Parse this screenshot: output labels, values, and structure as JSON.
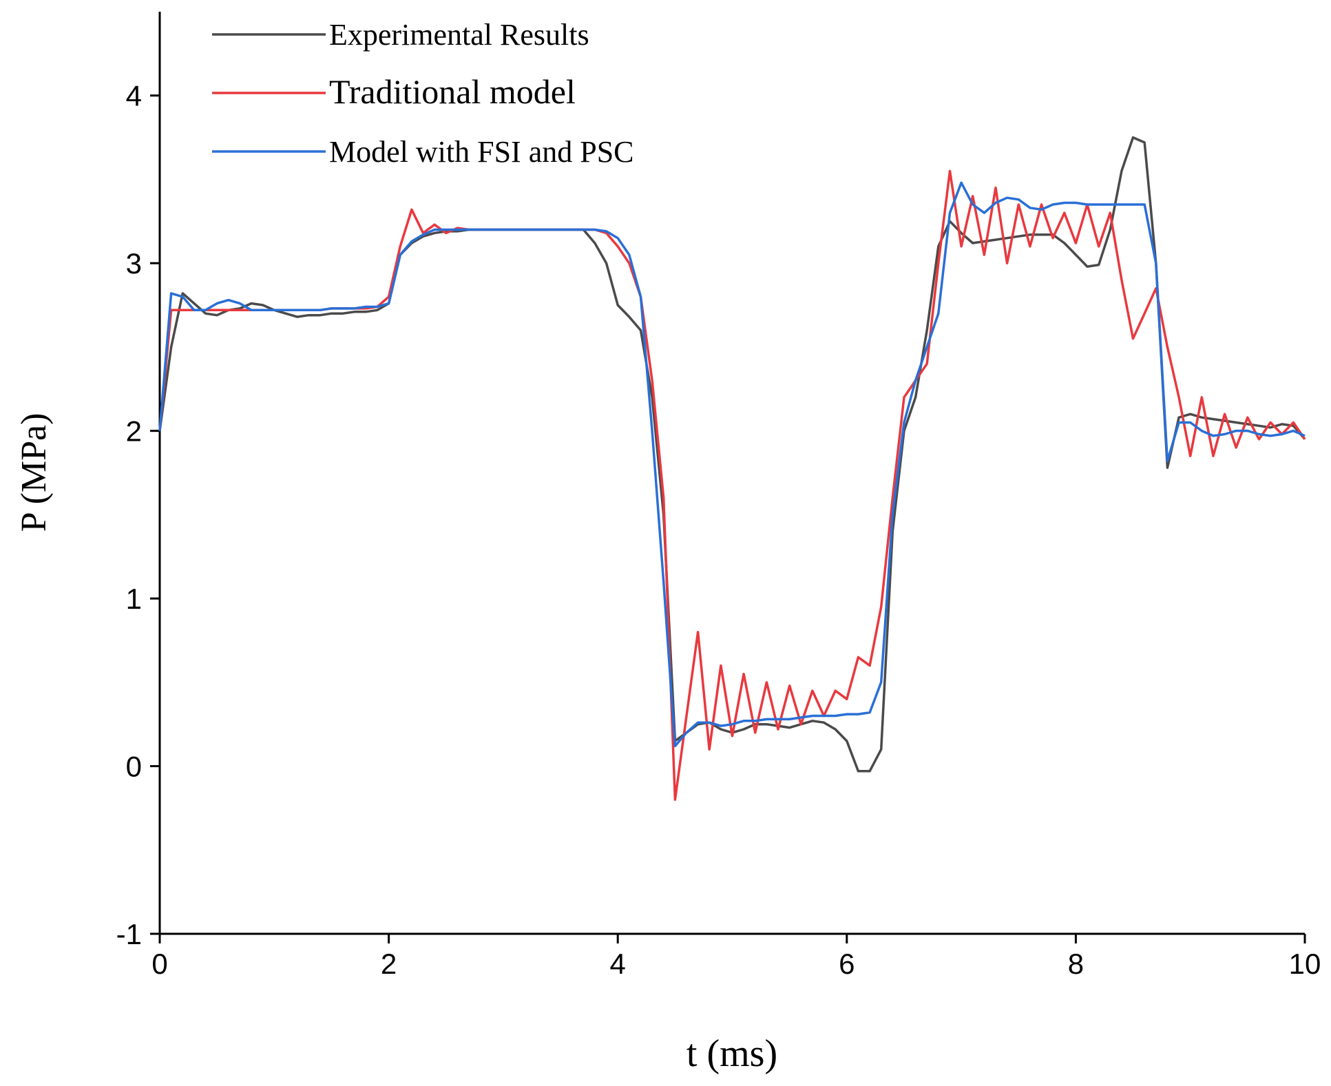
{
  "chart_data": {
    "type": "line",
    "x_label": "t (ms)",
    "y_label": "P (MPa)",
    "xlim": [
      0,
      10
    ],
    "ylim": [
      -1,
      4.5
    ],
    "xticks": [
      0,
      2,
      4,
      6,
      8,
      10
    ],
    "yticks": [
      -1,
      0,
      1,
      2,
      3,
      4
    ],
    "legend": "upper left",
    "x": [
      0,
      0.1,
      0.2,
      0.3,
      0.4,
      0.5,
      0.6,
      0.7,
      0.8,
      0.9,
      1,
      1.1,
      1.2,
      1.3,
      1.4,
      1.5,
      1.6,
      1.7,
      1.8,
      1.9,
      2,
      2.1,
      2.2,
      2.3,
      2.4,
      2.5,
      2.6,
      2.7,
      2.8,
      2.9,
      3,
      3.1,
      3.2,
      3.3,
      3.4,
      3.5,
      3.6,
      3.7,
      3.8,
      3.9,
      4,
      4.1,
      4.2,
      4.3,
      4.4,
      4.5,
      4.6,
      4.7,
      4.8,
      4.9,
      5,
      5.1,
      5.2,
      5.3,
      5.4,
      5.5,
      5.6,
      5.7,
      5.8,
      5.9,
      6,
      6.1,
      6.2,
      6.3,
      6.4,
      6.5,
      6.6,
      6.7,
      6.8,
      6.9,
      7,
      7.1,
      7.2,
      7.3,
      7.4,
      7.5,
      7.6,
      7.7,
      7.8,
      7.9,
      8,
      8.1,
      8.2,
      8.3,
      8.4,
      8.5,
      8.6,
      8.7,
      8.8,
      8.9,
      9,
      9.1,
      9.2,
      9.3,
      9.4,
      9.5,
      9.6,
      9.7,
      9.8,
      9.9,
      10
    ],
    "series": [
      {
        "name": "Experimental Results",
        "color": "#4a4a4a",
        "values": [
          2.0,
          2.5,
          2.82,
          2.76,
          2.7,
          2.69,
          2.72,
          2.73,
          2.76,
          2.75,
          2.72,
          2.7,
          2.68,
          2.69,
          2.69,
          2.7,
          2.7,
          2.71,
          2.71,
          2.72,
          2.76,
          3.05,
          3.12,
          3.16,
          3.18,
          3.19,
          3.19,
          3.2,
          3.2,
          3.2,
          3.2,
          3.2,
          3.2,
          3.2,
          3.2,
          3.2,
          3.2,
          3.2,
          3.12,
          3.0,
          2.75,
          2.68,
          2.6,
          2.2,
          1.5,
          0.15,
          0.2,
          0.25,
          0.26,
          0.22,
          0.2,
          0.22,
          0.25,
          0.25,
          0.24,
          0.23,
          0.25,
          0.27,
          0.26,
          0.22,
          0.15,
          -0.03,
          -0.03,
          0.1,
          1.4,
          2.0,
          2.2,
          2.6,
          3.1,
          3.25,
          3.18,
          3.12,
          3.13,
          3.14,
          3.15,
          3.16,
          3.17,
          3.17,
          3.17,
          3.12,
          3.05,
          2.98,
          2.99,
          3.2,
          3.55,
          3.75,
          3.72,
          3.0,
          1.78,
          2.08,
          2.1,
          2.08,
          2.07,
          2.06,
          2.05,
          2.04,
          2.03,
          2.02,
          2.04,
          2.03,
          1.95
        ]
      },
      {
        "name": "Traditional model",
        "color": "#e8393f",
        "values": [
          2.0,
          2.72,
          2.72,
          2.72,
          2.72,
          2.72,
          2.72,
          2.72,
          2.72,
          2.72,
          2.72,
          2.72,
          2.72,
          2.72,
          2.72,
          2.73,
          2.73,
          2.73,
          2.73,
          2.74,
          2.8,
          3.1,
          3.32,
          3.18,
          3.23,
          3.18,
          3.21,
          3.2,
          3.2,
          3.2,
          3.2,
          3.2,
          3.2,
          3.2,
          3.2,
          3.2,
          3.2,
          3.2,
          3.2,
          3.18,
          3.1,
          3.0,
          2.8,
          2.3,
          1.6,
          -0.2,
          0.3,
          0.8,
          0.1,
          0.6,
          0.18,
          0.55,
          0.2,
          0.5,
          0.22,
          0.48,
          0.25,
          0.45,
          0.3,
          0.45,
          0.4,
          0.65,
          0.6,
          0.95,
          1.6,
          2.2,
          2.3,
          2.4,
          3.0,
          3.55,
          3.1,
          3.4,
          3.05,
          3.45,
          3.0,
          3.35,
          3.1,
          3.35,
          3.15,
          3.3,
          3.12,
          3.35,
          3.1,
          3.3,
          2.9,
          2.55,
          2.7,
          2.85,
          2.5,
          2.2,
          1.85,
          2.2,
          1.85,
          2.1,
          1.9,
          2.08,
          1.95,
          2.05,
          1.98,
          2.05,
          1.95
        ]
      },
      {
        "name": "Model with FSI and PSC",
        "color": "#2a6fd6",
        "values": [
          2.0,
          2.82,
          2.8,
          2.72,
          2.72,
          2.76,
          2.78,
          2.76,
          2.72,
          2.72,
          2.72,
          2.72,
          2.72,
          2.72,
          2.72,
          2.73,
          2.73,
          2.73,
          2.74,
          2.74,
          2.76,
          3.05,
          3.13,
          3.17,
          3.2,
          3.2,
          3.2,
          3.2,
          3.2,
          3.2,
          3.2,
          3.2,
          3.2,
          3.2,
          3.2,
          3.2,
          3.2,
          3.2,
          3.2,
          3.19,
          3.15,
          3.05,
          2.8,
          2.0,
          1.1,
          0.12,
          0.2,
          0.26,
          0.26,
          0.24,
          0.25,
          0.27,
          0.27,
          0.28,
          0.28,
          0.28,
          0.29,
          0.3,
          0.3,
          0.3,
          0.31,
          0.31,
          0.32,
          0.5,
          1.5,
          2.05,
          2.3,
          2.5,
          2.7,
          3.3,
          3.48,
          3.35,
          3.3,
          3.36,
          3.39,
          3.38,
          3.33,
          3.32,
          3.35,
          3.36,
          3.36,
          3.35,
          3.35,
          3.35,
          3.35,
          3.35,
          3.35,
          3.0,
          1.82,
          2.05,
          2.05,
          2.0,
          1.97,
          1.98,
          2.0,
          2.0,
          1.98,
          1.97,
          1.98,
          2.0,
          1.97
        ]
      }
    ]
  }
}
